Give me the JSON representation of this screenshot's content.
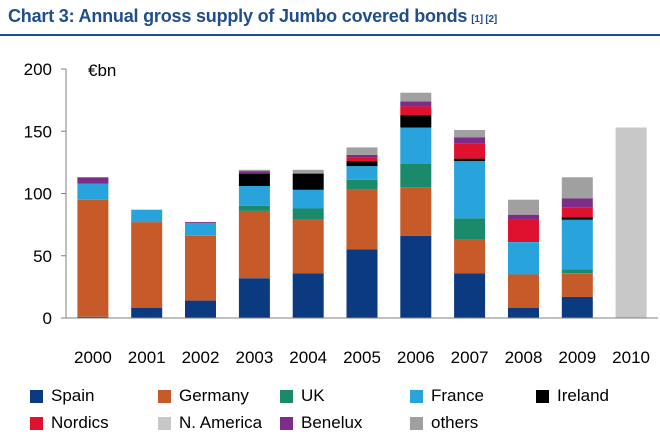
{
  "header": {
    "title": "Chart 3: Annual gross supply of Jumbo covered bonds",
    "note": "[1] [2]"
  },
  "chart_data": {
    "type": "bar",
    "stacked": true,
    "unit_label": "€bn",
    "ylim": [
      0,
      200
    ],
    "yticks": [
      0,
      50,
      100,
      150,
      200
    ],
    "grid": false,
    "legend_position": "bottom",
    "categories": [
      "2000",
      "2001",
      "2002",
      "2003",
      "2004",
      "2005",
      "2006",
      "2007",
      "2008",
      "2009",
      "2010"
    ],
    "series": [
      {
        "name": "Spain",
        "color": "#0b3a80",
        "values": [
          1,
          8,
          14,
          32,
          36,
          55,
          66,
          36,
          8,
          17,
          0
        ]
      },
      {
        "name": "Germany",
        "color": "#c65a28",
        "values": [
          94,
          69,
          52,
          54,
          43,
          48,
          39,
          27,
          27,
          19,
          0
        ]
      },
      {
        "name": "UK",
        "color": "#1a8a6a",
        "values": [
          0,
          0,
          0,
          4,
          9,
          8,
          19,
          17,
          0,
          3,
          0
        ]
      },
      {
        "name": "France",
        "color": "#29a3dc",
        "values": [
          13,
          10,
          10,
          16,
          15,
          11,
          29,
          46,
          26,
          40,
          0
        ]
      },
      {
        "name": "Ireland",
        "color": "#000000",
        "values": [
          0,
          0,
          0,
          10,
          13,
          4,
          10,
          2,
          0,
          2,
          0
        ]
      },
      {
        "name": "Nordics",
        "color": "#e0102f",
        "values": [
          0,
          0,
          0,
          0,
          0,
          3,
          7,
          12,
          18,
          8,
          0
        ]
      },
      {
        "name": "N. America",
        "color": "#c8c8c8",
        "values": [
          0,
          0,
          0,
          0,
          0,
          0,
          0,
          0,
          0,
          0,
          153
        ]
      },
      {
        "name": "Benelux",
        "color": "#7d2d87",
        "values": [
          5,
          0,
          1,
          2,
          0,
          2,
          4,
          5,
          4,
          7,
          0
        ]
      },
      {
        "name": "others",
        "color": "#a0a0a0",
        "values": [
          0,
          0,
          0,
          1,
          3,
          6,
          7,
          6,
          12,
          17,
          0
        ]
      }
    ]
  },
  "legend": {
    "order": [
      "Spain",
      "Germany",
      "UK",
      "France",
      "Ireland",
      "Nordics",
      "N. America",
      "Benelux",
      "others"
    ]
  }
}
